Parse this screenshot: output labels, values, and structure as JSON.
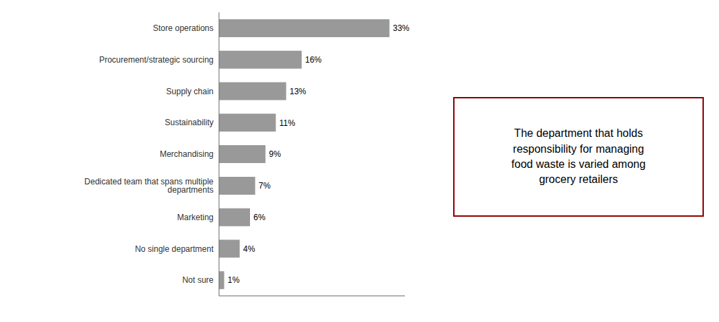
{
  "chart_data": {
    "type": "bar",
    "orientation": "horizontal",
    "categories": [
      "Not sure",
      "No single department",
      "Marketing",
      "Dedicated team that spans multiple departments",
      "Merchandising",
      "Sustainability",
      "Supply chain",
      "Procurement/strategic sourcing",
      "Store operations"
    ],
    "values": [
      1,
      4,
      6,
      7,
      9,
      11,
      13,
      16,
      33
    ],
    "value_labels": [
      "1%",
      "4%",
      "6%",
      "7%",
      "9%",
      "11%",
      "13%",
      "16%",
      "33%"
    ],
    "data_labels": true,
    "color": "#999999",
    "xlim": [
      0,
      36
    ],
    "tick_labels": "y",
    "grid": false,
    "annotations": [
      {
        "text": "The department that holds\nresponsibility for managing\nfood waste is varied among\ngrocery retailers",
        "color": "#8b0000"
      }
    ]
  }
}
